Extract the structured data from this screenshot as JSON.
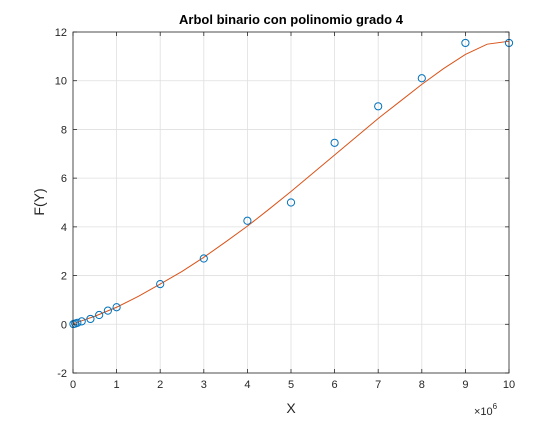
{
  "chart_data": {
    "type": "scatter",
    "title": "Arbol binario con polinomio grado 4",
    "xlabel": "X",
    "ylabel": "F(Y)",
    "x_exponent_label": "×10",
    "x_exponent_power": "6",
    "xlim": [
      0,
      10000000
    ],
    "ylim": [
      -2,
      12
    ],
    "x_ticks": [
      0,
      1000000,
      2000000,
      3000000,
      4000000,
      5000000,
      6000000,
      7000000,
      8000000,
      9000000,
      10000000
    ],
    "x_tick_labels": [
      "0",
      "1",
      "2",
      "3",
      "4",
      "5",
      "6",
      "7",
      "8",
      "9",
      "10"
    ],
    "y_ticks": [
      -2,
      0,
      2,
      4,
      6,
      8,
      10,
      12
    ],
    "y_tick_labels": [
      "-2",
      "0",
      "2",
      "4",
      "6",
      "8",
      "10",
      "12"
    ],
    "grid": true,
    "series": [
      {
        "type": "scatter",
        "color": "#0072BD",
        "x": [
          10000,
          50000,
          100000,
          200000,
          400000,
          600000,
          800000,
          1000000,
          2000000,
          3000000,
          4000000,
          5000000,
          6000000,
          7000000,
          8000000,
          9000000,
          10000000
        ],
        "y": [
          0.01,
          0.03,
          0.06,
          0.12,
          0.22,
          0.38,
          0.56,
          0.7,
          1.65,
          2.7,
          4.25,
          5.0,
          7.45,
          8.95,
          10.1,
          11.55,
          11.55
        ]
      },
      {
        "type": "line",
        "color": "#D95319",
        "x": [
          0,
          500000,
          1000000,
          1500000,
          2000000,
          2500000,
          3000000,
          3500000,
          4000000,
          4500000,
          5000000,
          5500000,
          6000000,
          6500000,
          7000000,
          7500000,
          8000000,
          8500000,
          9000000,
          9500000,
          10000000
        ],
        "y": [
          0.02,
          0.33,
          0.7,
          1.15,
          1.65,
          2.17,
          2.75,
          3.38,
          4.03,
          4.73,
          5.45,
          6.2,
          6.95,
          7.7,
          8.45,
          9.15,
          9.85,
          10.5,
          11.08,
          11.5,
          11.62
        ]
      }
    ]
  }
}
